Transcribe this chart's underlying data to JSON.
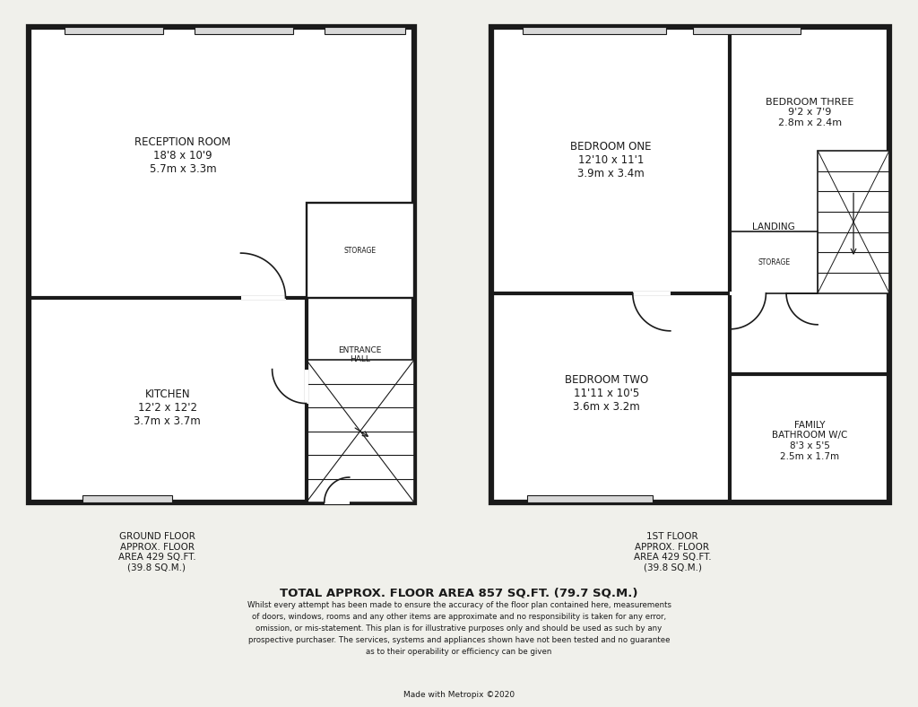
{
  "bg_color": "#f0f0eb",
  "wall_color": "#1a1a1a",
  "wall_lw": 3.0,
  "thin_lw": 1.2,
  "room_fill": "#ffffff",
  "win_fill": "#d8d8d8",
  "ground_floor_label": "GROUND FLOOR\nAPPROX. FLOOR\nAREA 429 SQ.FT.\n(39.8 SQ.M.)",
  "first_floor_label": "1ST FLOOR\nAPPROX. FLOOR\nAREA 429 SQ.FT.\n(39.8 SQ.M.)",
  "total_area": "TOTAL APPROX. FLOOR AREA 857 SQ.FT. (79.7 SQ.M.)",
  "disclaimer_line1": "Whilst every attempt has been made to ensure the accuracy of the floor plan contained here, measurements",
  "disclaimer_line2": "of doors, windows, rooms and any other items are approximate and no responsibility is taken for any error,",
  "disclaimer_line3": "omission, or mis-statement. This plan is for illustrative purposes only and should be used as such by any",
  "disclaimer_line4": "prospective purchaser. The services, systems and appliances shown have not been tested and no guarantee",
  "disclaimer_line5": "as to their operability or efficiency can be given",
  "credit": "Made with Metropix ©2020",
  "reception_label": "RECEPTION ROOM\n18'8 x 10'9\n5.7m x 3.3m",
  "kitchen_label": "KITCHEN\n12'2 x 12'2\n3.7m x 3.7m",
  "entrance_label": "ENTRANCE\nHALL",
  "storage_gf_label": "STORAGE",
  "bed1_label": "BEDROOM ONE\n12'10 x 11'1\n3.9m x 3.4m",
  "bed2_label": "BEDROOM TWO\n11'11 x 10'5\n3.6m x 3.2m",
  "bed3_label": "BEDROOM THREE\n9'2 x 7'9\n2.8m x 2.4m",
  "landing_label": "LANDING",
  "storage_ff_label": "STORAGE",
  "bathroom_label": "FAMILY\nBATHROOM W/C\n8'3 x 5'5\n2.5m x 1.7m"
}
